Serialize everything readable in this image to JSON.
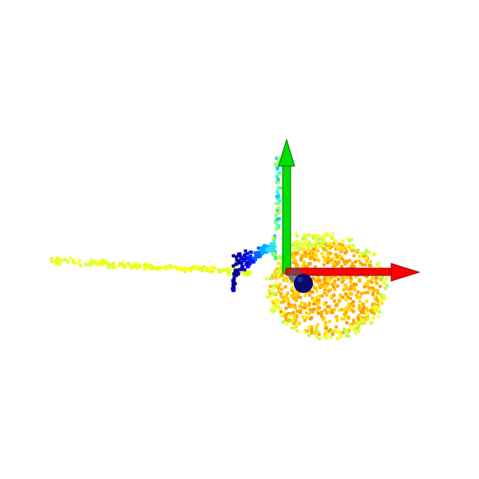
{
  "viewer": {
    "background": "#ffffff",
    "colormap": "jet"
  },
  "axes": {
    "x": {
      "color": "#ff0000",
      "edge": "#8a0000"
    },
    "y": {
      "color": "#00e000",
      "edge": "#006600"
    }
  },
  "origin_marker": {
    "color": "#0a0a6e"
  },
  "point_cloud": {
    "point_shape": "square",
    "clusters": [
      {
        "name": "trail",
        "colors": [
          "#e6ff1a",
          "#f5ff00",
          "#d8ff3a",
          "#ffff33"
        ]
      },
      {
        "name": "vertical-strip",
        "colors": [
          "#00ccff",
          "#33ffcc",
          "#99ff66",
          "#ffe600",
          "#80ff80"
        ]
      },
      {
        "name": "core-left",
        "colors": [
          "#00008b",
          "#0000cd",
          "#0a1aff",
          "#0066ff",
          "#00aaff",
          "#33ddff"
        ]
      },
      {
        "name": "main-blob",
        "colors": [
          "#ffb000",
          "#ffc000",
          "#ffa500",
          "#ffd000",
          "#ff9900",
          "#ffe000"
        ]
      },
      {
        "name": "blob-rim",
        "colors": [
          "#e8ff33",
          "#ccff33",
          "#ffff44",
          "#aaff55",
          "#f0ff22"
        ]
      }
    ]
  }
}
